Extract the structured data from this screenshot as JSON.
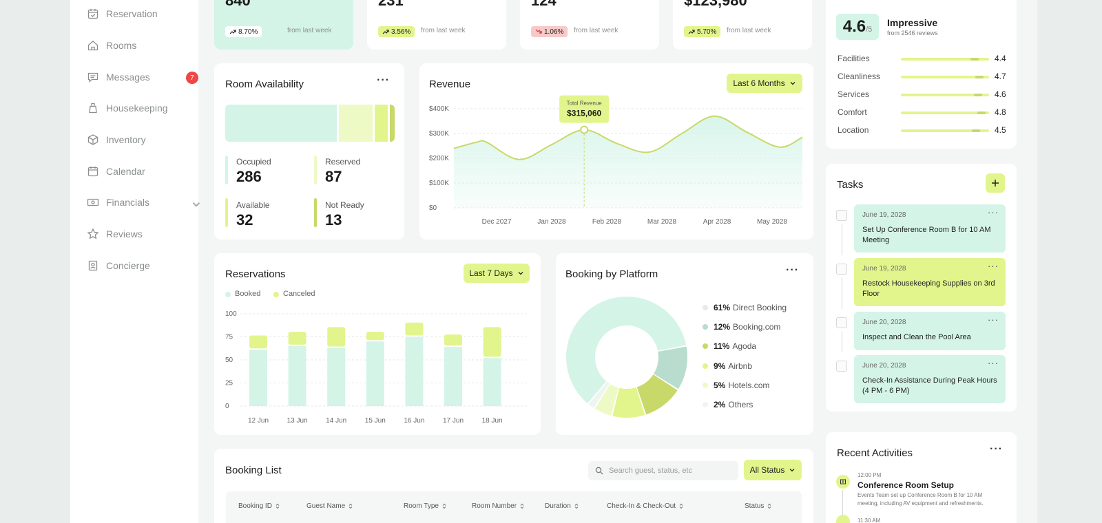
{
  "sidebar": {
    "items": [
      {
        "label": "Reservation",
        "icon": "calendar-check-icon"
      },
      {
        "label": "Rooms",
        "icon": "home-icon"
      },
      {
        "label": "Messages",
        "icon": "message-icon",
        "badge": "7"
      },
      {
        "label": "Housekeeping",
        "icon": "housekeeping-icon"
      },
      {
        "label": "Inventory",
        "icon": "box-icon"
      },
      {
        "label": "Calendar",
        "icon": "calendar-icon"
      },
      {
        "label": "Financials",
        "icon": "cash-icon"
      },
      {
        "label": "Reviews",
        "icon": "star-icon"
      },
      {
        "label": "Concierge",
        "icon": "concierge-icon"
      }
    ]
  },
  "stats": [
    {
      "value": "840",
      "change": "8.70%",
      "note": "from last week",
      "trend": "up",
      "chip_color": "#ffffff",
      "card_color": "#d4f4e8"
    },
    {
      "value": "231",
      "change": "3.56%",
      "note": "from last week",
      "trend": "up",
      "chip_color": "#e2f58c",
      "card_color": "#ffffff"
    },
    {
      "value": "124",
      "change": "1.06%",
      "note": "from last week",
      "trend": "down",
      "chip_color": "#f7c9c9",
      "card_color": "#ffffff"
    },
    {
      "value": "$123,980",
      "change": "5.70%",
      "note": "from last week",
      "trend": "up",
      "chip_color": "#e2f58c",
      "card_color": "#ffffff"
    }
  ],
  "room_availability": {
    "title": "Room Availability",
    "occupied_label": "Occupied",
    "occupied": "286",
    "reserved_label": "Reserved",
    "reserved": "87",
    "available_label": "Available",
    "available": "32",
    "notready_label": "Not Ready",
    "notready": "13"
  },
  "revenue": {
    "title": "Revenue",
    "range_label": "Last 6 Months",
    "tooltip_label": "Total Revenue",
    "tooltip_value": "$315,060",
    "y_ticks": [
      "$400K",
      "$300K",
      "$200K",
      "$100K",
      "$0"
    ],
    "x_ticks": [
      "Dec 2027",
      "Jan 2028",
      "Feb 2028",
      "Mar 2028",
      "Apr 2028",
      "May 2028"
    ]
  },
  "reservations": {
    "title": "Reservations",
    "range_label": "Last 7 Days",
    "legend_booked": "Booked",
    "legend_canceled": "Canceled",
    "y_ticks": [
      "100",
      "75",
      "50",
      "25",
      "0"
    ]
  },
  "platform": {
    "title": "Booking by Platform",
    "items": [
      {
        "pct": "61%",
        "name": "Direct Booking",
        "color": "#d4f4e8"
      },
      {
        "pct": "12%",
        "name": "Booking.com",
        "color": "#b8dccd"
      },
      {
        "pct": "11%",
        "name": "Agoda",
        "color": "#c8d96a"
      },
      {
        "pct": "9%",
        "name": "Airbnb",
        "color": "#e2f58c"
      },
      {
        "pct": "5%",
        "name": "Hotels.com",
        "color": "#eefac6"
      },
      {
        "pct": "2%",
        "name": "Others",
        "color": "#eef5f1"
      }
    ]
  },
  "reviews": {
    "score": "4.6",
    "score_suffix": "/5",
    "label": "Impressive",
    "sub": "from 2546 reviews",
    "rows": [
      {
        "name": "Facilities",
        "value": "4.4"
      },
      {
        "name": "Cleanliness",
        "value": "4.7"
      },
      {
        "name": "Services",
        "value": "4.6"
      },
      {
        "name": "Comfort",
        "value": "4.8"
      },
      {
        "name": "Location",
        "value": "4.5"
      }
    ]
  },
  "tasks": {
    "title": "Tasks",
    "items": [
      {
        "date": "June 19, 2028",
        "text": "Set Up Conference Room B for 10 AM Meeting",
        "color": "#d4f4e8"
      },
      {
        "date": "June 19, 2028",
        "text": "Restock Housekeeping Supplies on 3rd Floor",
        "color": "#e2f58c"
      },
      {
        "date": "June 20, 2028",
        "text": "Inspect and Clean the Pool Area",
        "color": "#d4f4e8"
      },
      {
        "date": "June 20, 2028",
        "text": "Check-In Assistance During Peak Hours (4 PM - 6 PM)",
        "color": "#d4f4e8"
      }
    ]
  },
  "activities": {
    "title": "Recent Activities",
    "items": [
      {
        "time": "12:00 PM",
        "title": "Conference Room Setup",
        "desc": "Events Team set up Conference Room B for 10 AM meeting, including AV equipment and refreshments."
      },
      {
        "time": "11:30 AM"
      }
    ]
  },
  "booking_list": {
    "title": "Booking List",
    "search_placeholder": "Search guest, status, etc",
    "status_label": "All Status",
    "columns": [
      "Booking ID",
      "Guest Name",
      "Room Type",
      "Room Number",
      "Duration",
      "Check-In & Check-Out",
      "Status"
    ]
  },
  "chart_data": [
    {
      "type": "area",
      "title": "Revenue",
      "categories": [
        "Dec 2027",
        "Jan 2028",
        "Feb 2028",
        "Mar 2028",
        "Apr 2028",
        "May 2028"
      ],
      "x": [
        0,
        0.35,
        0.5,
        1,
        1.5,
        2,
        2.5,
        3,
        3.5,
        4,
        4.5,
        5,
        5.35
      ],
      "values": [
        240000,
        265000,
        265000,
        195000,
        255000,
        315060,
        260000,
        225000,
        300000,
        370000,
        305000,
        245000,
        285000
      ],
      "ylim": [
        0,
        400000
      ],
      "y_ticks": [
        "$400K",
        "$300K",
        "$200K",
        "$100K",
        "$0"
      ],
      "grid": true
    },
    {
      "type": "bar",
      "title": "Reservations",
      "categories": [
        "12 Jun",
        "13 Jun",
        "14 Jun",
        "15 Jun",
        "16 Jun",
        "17 Jun",
        "18 Jun"
      ],
      "series": [
        {
          "name": "Booked",
          "values": [
            61,
            65,
            63,
            70,
            75,
            64,
            52
          ],
          "color": "#d4f4e8"
        },
        {
          "name": "Canceled",
          "values": [
            17,
            17,
            24,
            12,
            17,
            15,
            35
          ],
          "color": "#e2f58c"
        }
      ],
      "stacked": true,
      "ylim": [
        0,
        100
      ],
      "grid": true
    },
    {
      "type": "pie",
      "title": "Booking by Platform",
      "categories": [
        "Direct Booking",
        "Booking.com",
        "Agoda",
        "Airbnb",
        "Hotels.com",
        "Others"
      ],
      "values": [
        61,
        12,
        11,
        9,
        5,
        2
      ],
      "donut": true
    },
    {
      "type": "bar",
      "title": "Room Availability",
      "categories": [
        "Occupied",
        "Reserved",
        "Available",
        "Not Ready"
      ],
      "values": [
        286,
        87,
        32,
        13
      ],
      "stacked": true
    }
  ]
}
